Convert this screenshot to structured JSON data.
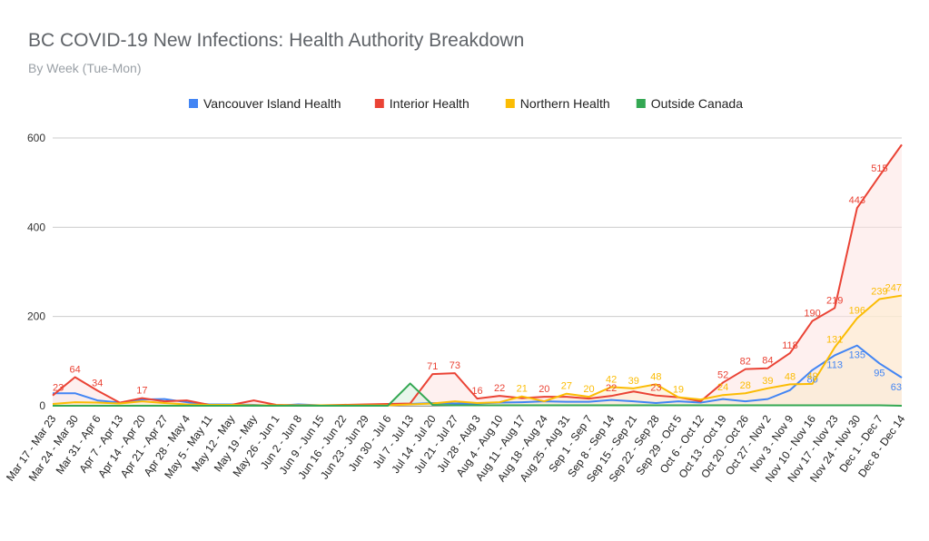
{
  "chart_data": {
    "type": "area",
    "title": "BC COVID-19 New Infections: Health Authority Breakdown",
    "subtitle": "By Week (Tue-Mon)",
    "ylim": [
      0,
      600
    ],
    "yticks": [
      0,
      200,
      400,
      600
    ],
    "grid": true,
    "legend_position": "top",
    "categories": [
      "Mar 17 - Mar 23",
      "Mar 24 - Mar 30",
      "Mar 31 - Apr 6",
      "Apr 7 - Apr 13",
      "Apr 14 - Apr 20",
      "Apr 21 - Apr 27",
      "Apr 28 - May 4",
      "May 5 - May 11",
      "May 12 - May",
      "May 19 - May",
      "May 26 - Jun 1",
      "Jun 2 - Jun 8",
      "Jun 9 - Jun 15",
      "Jun 16 - Jun 22",
      "Jun 23 - Jun 29",
      "Jun 30 - Jul 6",
      "Jul 7 - Jul 13",
      "Jul 14 - Jul 20",
      "Jul 21 - Jul 27",
      "Jul 28 - Aug 3",
      "Aug 4 - Aug 10",
      "Aug 11 - Aug 17",
      "Aug 18 - Aug 24",
      "Aug 25 - Aug 31",
      "Sep 1 - Sep 7",
      "Sep 8 - Sep 14",
      "Sep 15 - Sep 21",
      "Sep 22 - Sep 28",
      "Sep 29 - Oct 5",
      "Oct 6 - Oct 12",
      "Oct 13 - Oct 19",
      "Oct 20 - Oct 26",
      "Oct 27 - Nov 2",
      "Nov 3 - Nov 9",
      "Nov 10 - Nov 16",
      "Nov 17 - Nov 23",
      "Nov 24 - Nov 30",
      "Dec 1 - Dec 7",
      "Dec 8 - Dec 14"
    ],
    "series": [
      {
        "name": "Vancouver Island Health",
        "color": "#4285f4",
        "fill": "#e8eefc",
        "values": [
          28,
          28,
          12,
          7,
          14,
          15,
          8,
          3,
          3,
          2,
          0,
          3,
          1,
          1,
          1,
          2,
          4,
          6,
          5,
          5,
          7,
          8,
          10,
          9,
          9,
          13,
          10,
          6,
          10,
          7,
          15,
          10,
          15,
          35,
          80,
          113,
          135,
          95,
          63
        ],
        "labels": [
          null,
          null,
          null,
          null,
          null,
          null,
          null,
          null,
          null,
          null,
          null,
          null,
          null,
          null,
          null,
          null,
          null,
          null,
          null,
          null,
          null,
          null,
          null,
          null,
          null,
          null,
          null,
          null,
          null,
          null,
          null,
          null,
          null,
          null,
          "80",
          "113",
          "135",
          "95",
          "63"
        ]
      },
      {
        "name": "Interior Health",
        "color": "#ea4335",
        "fill": "#fde3e1",
        "values": [
          23,
          64,
          34,
          7,
          17,
          10,
          12,
          2,
          2,
          12,
          2,
          1,
          1,
          2,
          3,
          4,
          5,
          71,
          73,
          16,
          22,
          17,
          20,
          20,
          16,
          22,
          32,
          23,
          19,
          10,
          52,
          82,
          84,
          118,
          190,
          219,
          443,
          515,
          585
        ],
        "labels": [
          "23",
          "64",
          "34",
          null,
          "17",
          null,
          null,
          null,
          null,
          null,
          null,
          null,
          null,
          null,
          null,
          null,
          null,
          "71",
          "73",
          "16",
          "22",
          null,
          "20",
          null,
          null,
          "22",
          null,
          "23",
          null,
          null,
          "52",
          "82",
          "84",
          "118",
          "190",
          "219",
          "443",
          "515",
          null
        ]
      },
      {
        "name": "Northern Health",
        "color": "#fbbc04",
        "fill": "#fdedcc",
        "values": [
          4,
          8,
          7,
          5,
          10,
          6,
          3,
          2,
          2,
          1,
          1,
          1,
          1,
          1,
          1,
          1,
          3,
          5,
          10,
          6,
          8,
          21,
          10,
          27,
          20,
          42,
          39,
          48,
          19,
          14,
          24,
          28,
          39,
          48,
          49,
          131,
          196,
          239,
          247
        ],
        "labels": [
          null,
          null,
          null,
          null,
          null,
          null,
          null,
          null,
          null,
          null,
          null,
          null,
          null,
          null,
          null,
          null,
          null,
          null,
          null,
          null,
          null,
          "21",
          null,
          "27",
          "20",
          "42",
          "39",
          "48",
          "19",
          null,
          "24",
          "28",
          "39",
          "48",
          "49",
          "131",
          "196",
          "239",
          "247"
        ]
      },
      {
        "name": "Outside Canada",
        "color": "#34a853",
        "fill": "#d6eedc",
        "values": [
          0,
          0,
          0,
          0,
          0,
          0,
          0,
          0,
          0,
          0,
          0,
          0,
          0,
          0,
          0,
          0,
          50,
          2,
          1,
          1,
          1,
          1,
          1,
          1,
          1,
          1,
          1,
          1,
          1,
          1,
          1,
          1,
          1,
          1,
          1,
          1,
          1,
          1,
          0
        ],
        "labels": [
          null,
          null,
          null,
          null,
          null,
          null,
          null,
          null,
          null,
          null,
          null,
          null,
          null,
          null,
          null,
          null,
          null,
          null,
          null,
          null,
          null,
          null,
          null,
          null,
          null,
          null,
          null,
          null,
          null,
          null,
          null,
          null,
          null,
          null,
          null,
          null,
          null,
          null,
          null
        ]
      }
    ]
  }
}
